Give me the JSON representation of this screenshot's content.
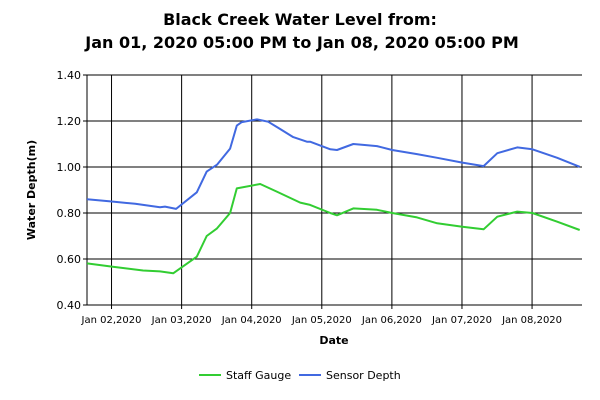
{
  "chart_data": {
    "type": "line",
    "title": [
      "Black Creek Water Level from:",
      "Jan 01, 2020 05:00 PM to Jan 08, 2020 05:00 PM"
    ],
    "xlabel": "Date",
    "ylabel": "Water Depth(m)",
    "x_units": "hours since start of plotted range",
    "xlim": [
      0,
      169.5
    ],
    "ylim": [
      0.4,
      1.4
    ],
    "yticks": [
      0.4,
      0.6,
      0.8,
      1.0,
      1.2,
      1.4
    ],
    "ytick_labels": [
      "0.40",
      "0.60",
      "0.80",
      "1.00",
      "1.20",
      "1.40"
    ],
    "xticks": [
      8.4,
      32.4,
      56.4,
      80.4,
      104.4,
      128.4,
      152.4
    ],
    "xtick_labels": [
      "Jan 02,2020",
      "Jan 03,2020",
      "Jan 04,2020",
      "Jan 05,2020",
      "Jan 06,2020",
      "Jan 07,2020",
      "Jan 08,2020"
    ],
    "grid": true,
    "legend_position": "bottom",
    "series": [
      {
        "name": "Staff Gauge",
        "color": "#32CD32",
        "x": [
          0,
          8.5,
          19.2,
          25,
          29.5,
          37.6,
          41,
          44.5,
          49,
          51.3,
          59.3,
          65,
          73,
          76.4,
          83.3,
          85.6,
          91.2,
          99.3,
          104.5,
          113,
          119.9,
          128.5,
          135.8,
          140.5,
          147.3,
          152.5,
          161,
          168.7
        ],
        "y": [
          0.581,
          0.567,
          0.55,
          0.546,
          0.538,
          0.61,
          0.7,
          0.733,
          0.8,
          0.907,
          0.926,
          0.893,
          0.845,
          0.835,
          0.8,
          0.79,
          0.82,
          0.814,
          0.8,
          0.781,
          0.755,
          0.74,
          0.729,
          0.784,
          0.806,
          0.8,
          0.762,
          0.726
        ]
      },
      {
        "name": "Sensor Depth",
        "color": "#4169E1",
        "x": [
          0,
          8.5,
          16.5,
          25,
          26.7,
          30.5,
          37.6,
          41,
          44.5,
          49,
          51.3,
          53,
          58.2,
          62,
          65.5,
          70.6,
          75.3,
          76.4,
          83.3,
          85.6,
          91.2,
          94.6,
          99.3,
          104.5,
          113,
          119.9,
          128.5,
          135.8,
          140.5,
          147.3,
          152.5,
          161,
          168.7
        ],
        "y": [
          0.86,
          0.85,
          0.84,
          0.825,
          0.828,
          0.818,
          0.89,
          0.98,
          1.01,
          1.08,
          1.18,
          1.195,
          1.207,
          1.197,
          1.17,
          1.13,
          1.11,
          1.11,
          1.077,
          1.074,
          1.1,
          1.096,
          1.091,
          1.074,
          1.056,
          1.04,
          1.019,
          1.004,
          1.06,
          1.085,
          1.077,
          1.04,
          1.001
        ]
      }
    ]
  }
}
